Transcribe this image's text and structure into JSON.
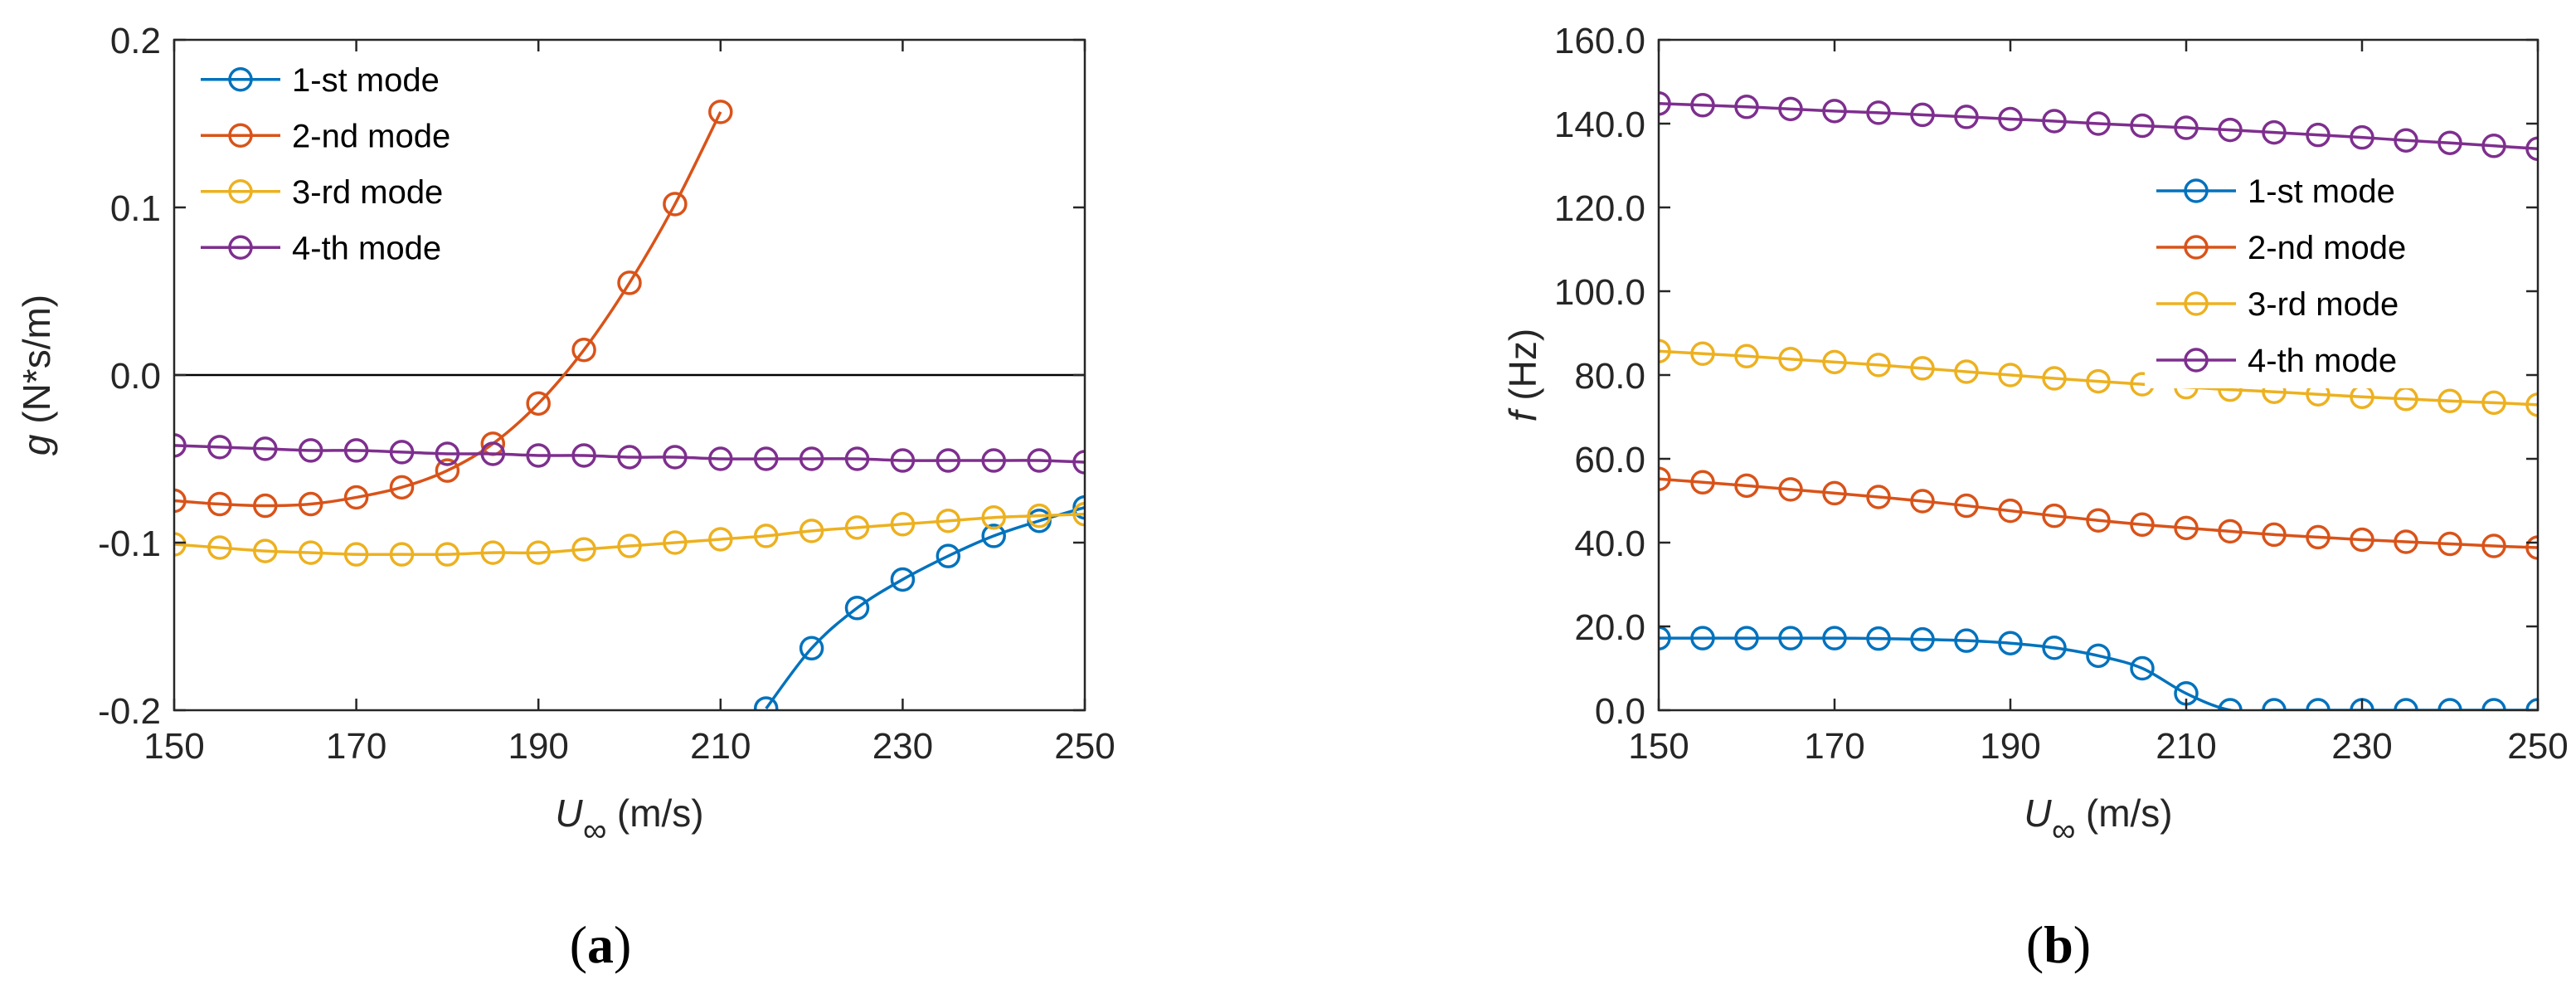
{
  "chart_data": [
    {
      "type": "line",
      "panel_label": "(a)",
      "panel_letter": "a",
      "xlabel": "U∞ (m/s)",
      "xlabel_main": "U",
      "xlabel_sub": "∞",
      "xlabel_unit": " (m/s)",
      "ylabel": "g (N*s/m)",
      "ylabel_var": "g",
      "ylabel_unit": " (N*s/m)",
      "xlim": [
        150,
        250
      ],
      "ylim": [
        -0.2,
        0.2
      ],
      "xticks": [
        150,
        170,
        190,
        210,
        230,
        250
      ],
      "yticks": [
        -0.2,
        -0.1,
        0.0,
        0.1,
        0.2
      ],
      "ytick_labels": [
        "-0.2",
        "-0.1",
        "0.0",
        "0.1",
        "0.2"
      ],
      "zero_line": true,
      "grid": false,
      "legend_position": "top-left",
      "series": [
        {
          "name": "1-st mode",
          "color": "#0072BD",
          "x": [
            215,
            220,
            225,
            230,
            235,
            240,
            245,
            250
          ],
          "y": [
            -0.199,
            -0.163,
            -0.139,
            -0.122,
            -0.108,
            -0.096,
            -0.087,
            -0.079
          ]
        },
        {
          "name": "2-nd mode",
          "color": "#D95319",
          "x": [
            150,
            155,
            160,
            165,
            170,
            175,
            180,
            185,
            190,
            195,
            200,
            205,
            210
          ],
          "y": [
            -0.075,
            -0.077,
            -0.078,
            -0.077,
            -0.073,
            -0.067,
            -0.057,
            -0.041,
            -0.017,
            0.015,
            0.055,
            0.102,
            0.157
          ]
        },
        {
          "name": "3-rd mode",
          "color": "#EDB120",
          "x": [
            150,
            155,
            160,
            165,
            170,
            175,
            180,
            185,
            190,
            195,
            200,
            205,
            210,
            215,
            220,
            225,
            230,
            235,
            240,
            245,
            250
          ],
          "y": [
            -0.101,
            -0.103,
            -0.105,
            -0.106,
            -0.107,
            -0.107,
            -0.107,
            -0.106,
            -0.106,
            -0.104,
            -0.102,
            -0.1,
            -0.098,
            -0.096,
            -0.093,
            -0.091,
            -0.089,
            -0.087,
            -0.085,
            -0.084,
            -0.083
          ]
        },
        {
          "name": "4-th mode",
          "color": "#7E2F8E",
          "x": [
            150,
            155,
            160,
            165,
            170,
            175,
            180,
            185,
            190,
            195,
            200,
            205,
            210,
            215,
            220,
            225,
            230,
            235,
            240,
            245,
            250
          ],
          "y": [
            -0.042,
            -0.043,
            -0.044,
            -0.045,
            -0.045,
            -0.046,
            -0.047,
            -0.047,
            -0.048,
            -0.048,
            -0.049,
            -0.049,
            -0.05,
            -0.05,
            -0.05,
            -0.05,
            -0.051,
            -0.051,
            -0.051,
            -0.051,
            -0.052
          ]
        }
      ]
    },
    {
      "type": "line",
      "panel_label": "(b)",
      "panel_letter": "b",
      "xlabel": "U∞ (m/s)",
      "xlabel_main": "U",
      "xlabel_sub": "∞",
      "xlabel_unit": " (m/s)",
      "ylabel": "f (Hz)",
      "ylabel_var": "f",
      "ylabel_unit": " (Hz)",
      "xlim": [
        150,
        250
      ],
      "ylim": [
        0,
        160
      ],
      "xticks": [
        150,
        170,
        190,
        210,
        230,
        250
      ],
      "yticks": [
        0,
        20,
        40,
        60,
        80,
        100,
        120,
        140,
        160
      ],
      "ytick_labels": [
        "0.0",
        "20.0",
        "40.0",
        "60.0",
        "80.0",
        "100.0",
        "120.0",
        "140.0",
        "160.0"
      ],
      "zero_line": false,
      "grid": false,
      "legend_position": "upper-right",
      "series": [
        {
          "name": "1-st mode",
          "color": "#0072BD",
          "x": [
            150,
            155,
            160,
            165,
            170,
            175,
            180,
            185,
            190,
            195,
            200,
            205,
            210,
            215,
            220,
            225,
            230,
            235,
            240,
            245,
            250
          ],
          "y": [
            17.2,
            17.2,
            17.2,
            17.2,
            17.2,
            17.1,
            16.9,
            16.6,
            16.0,
            14.9,
            13.0,
            10.0,
            4.0,
            0,
            0,
            0,
            0,
            0,
            0,
            0,
            0
          ]
        },
        {
          "name": "2-nd mode",
          "color": "#D95319",
          "x": [
            150,
            155,
            160,
            165,
            170,
            175,
            180,
            185,
            190,
            195,
            200,
            205,
            210,
            215,
            220,
            225,
            230,
            235,
            240,
            245,
            250
          ],
          "y": [
            55.2,
            54.4,
            53.6,
            52.7,
            51.8,
            50.9,
            49.9,
            48.8,
            47.6,
            46.4,
            45.3,
            44.3,
            43.5,
            42.7,
            41.9,
            41.3,
            40.7,
            40.2,
            39.7,
            39.2,
            38.8
          ]
        },
        {
          "name": "3-rd mode",
          "color": "#EDB120",
          "x": [
            150,
            155,
            160,
            165,
            170,
            175,
            180,
            185,
            190,
            195,
            200,
            205,
            210,
            215,
            220,
            225,
            230,
            235,
            240,
            245,
            250
          ],
          "y": [
            85.7,
            85.1,
            84.5,
            83.8,
            83.1,
            82.4,
            81.6,
            80.8,
            80.0,
            79.2,
            78.5,
            77.8,
            77.1,
            76.5,
            76.0,
            75.4,
            74.8,
            74.3,
            73.8,
            73.4,
            72.9
          ]
        },
        {
          "name": "4-th mode",
          "color": "#7E2F8E",
          "x": [
            150,
            155,
            160,
            165,
            170,
            175,
            180,
            185,
            190,
            195,
            200,
            205,
            210,
            215,
            220,
            225,
            230,
            235,
            240,
            245,
            250
          ],
          "y": [
            144.8,
            144.4,
            144.0,
            143.5,
            143.0,
            142.6,
            142.1,
            141.6,
            141.1,
            140.6,
            140.0,
            139.5,
            139.0,
            138.5,
            137.9,
            137.3,
            136.7,
            136.0,
            135.4,
            134.7,
            134.0
          ]
        }
      ]
    }
  ]
}
